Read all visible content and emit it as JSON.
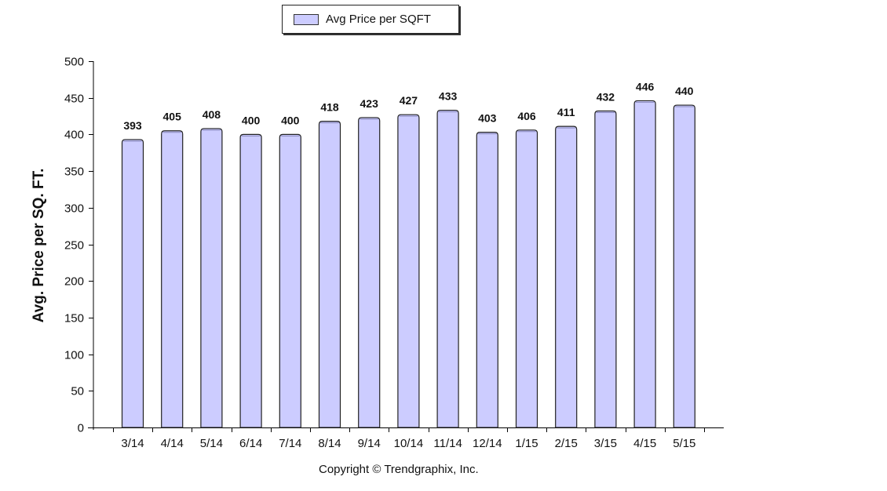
{
  "legend": {
    "label": "Avg Price per SQFT"
  },
  "copyright": "Copyright © Trendgraphix, Inc.",
  "colors": {
    "bar_fill": "#ccccff",
    "bar_stroke": "#222222",
    "axis": "#000000"
  },
  "chart_data": {
    "type": "bar",
    "title": "",
    "ylabel": "Avg. Price per SQ. FT.",
    "xlabel": "",
    "ylim": [
      0,
      500
    ],
    "yticks": [
      0,
      50,
      100,
      150,
      200,
      250,
      300,
      350,
      400,
      450,
      500
    ],
    "grid": false,
    "legend_position": "top-center",
    "categories": [
      "3/14",
      "4/14",
      "5/14",
      "6/14",
      "7/14",
      "8/14",
      "9/14",
      "10/14",
      "11/14",
      "12/14",
      "1/15",
      "2/15",
      "3/15",
      "4/15",
      "5/15"
    ],
    "series": [
      {
        "name": "Avg Price per SQFT",
        "values": [
          393,
          405,
          408,
          400,
          400,
          418,
          423,
          427,
          433,
          403,
          406,
          411,
          432,
          446,
          440
        ]
      }
    ]
  }
}
